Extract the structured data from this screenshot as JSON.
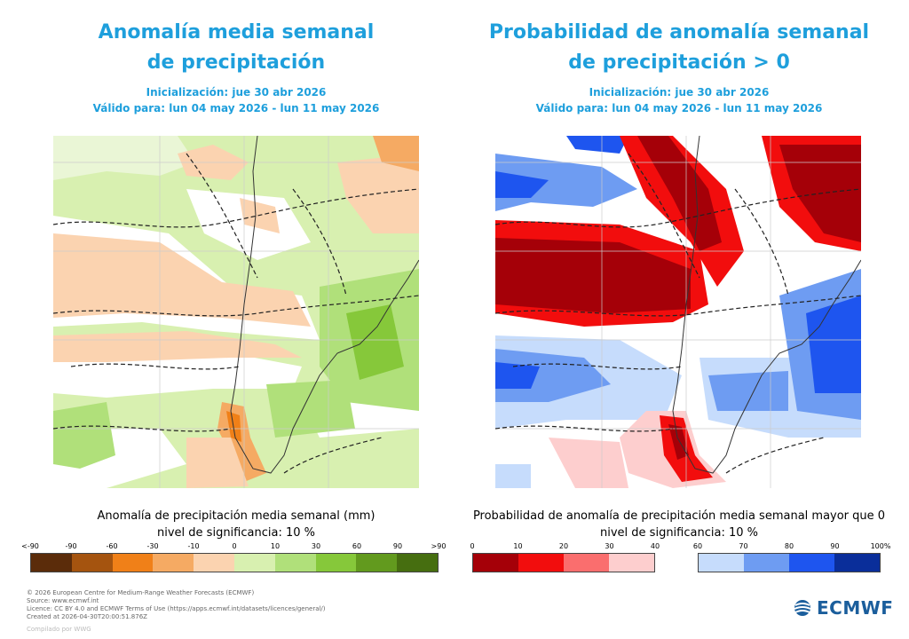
{
  "left_panel": {
    "title_line1": "Anomalía media semanal",
    "title_line2": "de precipitación",
    "init": "Inicialización: jue 30 abr 2026",
    "valid": "Válido para: lun 04 may 2026 - lun 11 may 2026",
    "caption_line1": "Anomalía de precipitación media semanal (mm)",
    "caption_line2": "nivel de significancia: 10 %",
    "colorbar_ticks": [
      "<-90",
      "-90",
      "-60",
      "-30",
      "-10",
      "0",
      "10",
      "30",
      "60",
      "90",
      ">90"
    ],
    "colorbar_colors": [
      "#5b2c0a",
      "#a5540f",
      "#f08018",
      "#f5aa63",
      "#fbd3b0",
      "#ffffff",
      "#d8f0b0",
      "#b0e07a",
      "#86c83a",
      "#629a1e",
      "#466e10"
    ]
  },
  "right_panel": {
    "title_line1": "Probabilidad de anomalía semanal",
    "title_line2": "de precipitación > 0",
    "init": "Inicialización: jue 30 abr 2026",
    "valid": "Válido para: lun 04 may 2026 - lun 11 may 2026",
    "caption_line1": "Probabilidad de anomalía de precipitación media semanal mayor que 0",
    "caption_line2": "nivel de significancia: 10 %",
    "colorbar_ticks_red": [
      "0",
      "10",
      "20",
      "30",
      "40"
    ],
    "colorbar_ticks_blue": [
      "60",
      "70",
      "80",
      "90",
      "100%"
    ],
    "colorbar_colors_red": [
      "#a50008",
      "#f20d0d",
      "#fa6e6e",
      "#fdcece"
    ],
    "colorbar_colors_blue": [
      "#c6dcfc",
      "#6e9cf2",
      "#1e55ef",
      "#0a2e9a"
    ]
  },
  "colors": {
    "title": "#1e9fdc",
    "footer": "#666666",
    "logo": "#1b5e9c"
  },
  "footer": {
    "line1": "© 2026 European Centre for Medium-Range Weather Forecasts (ECMWF)",
    "line2": "Source: www.ecmwf.int",
    "line3": "Licence: CC BY 4.0 and ECMWF Terms of Use (https://apps.ecmwf.int/datasets/licences/general/)",
    "line4": "Created at 2026-04-30T20:00:51.876Z",
    "credit": "Compilado por WWG"
  },
  "logo": {
    "text": "ECMWF",
    "icon": "ecmwf-logo-icon"
  }
}
